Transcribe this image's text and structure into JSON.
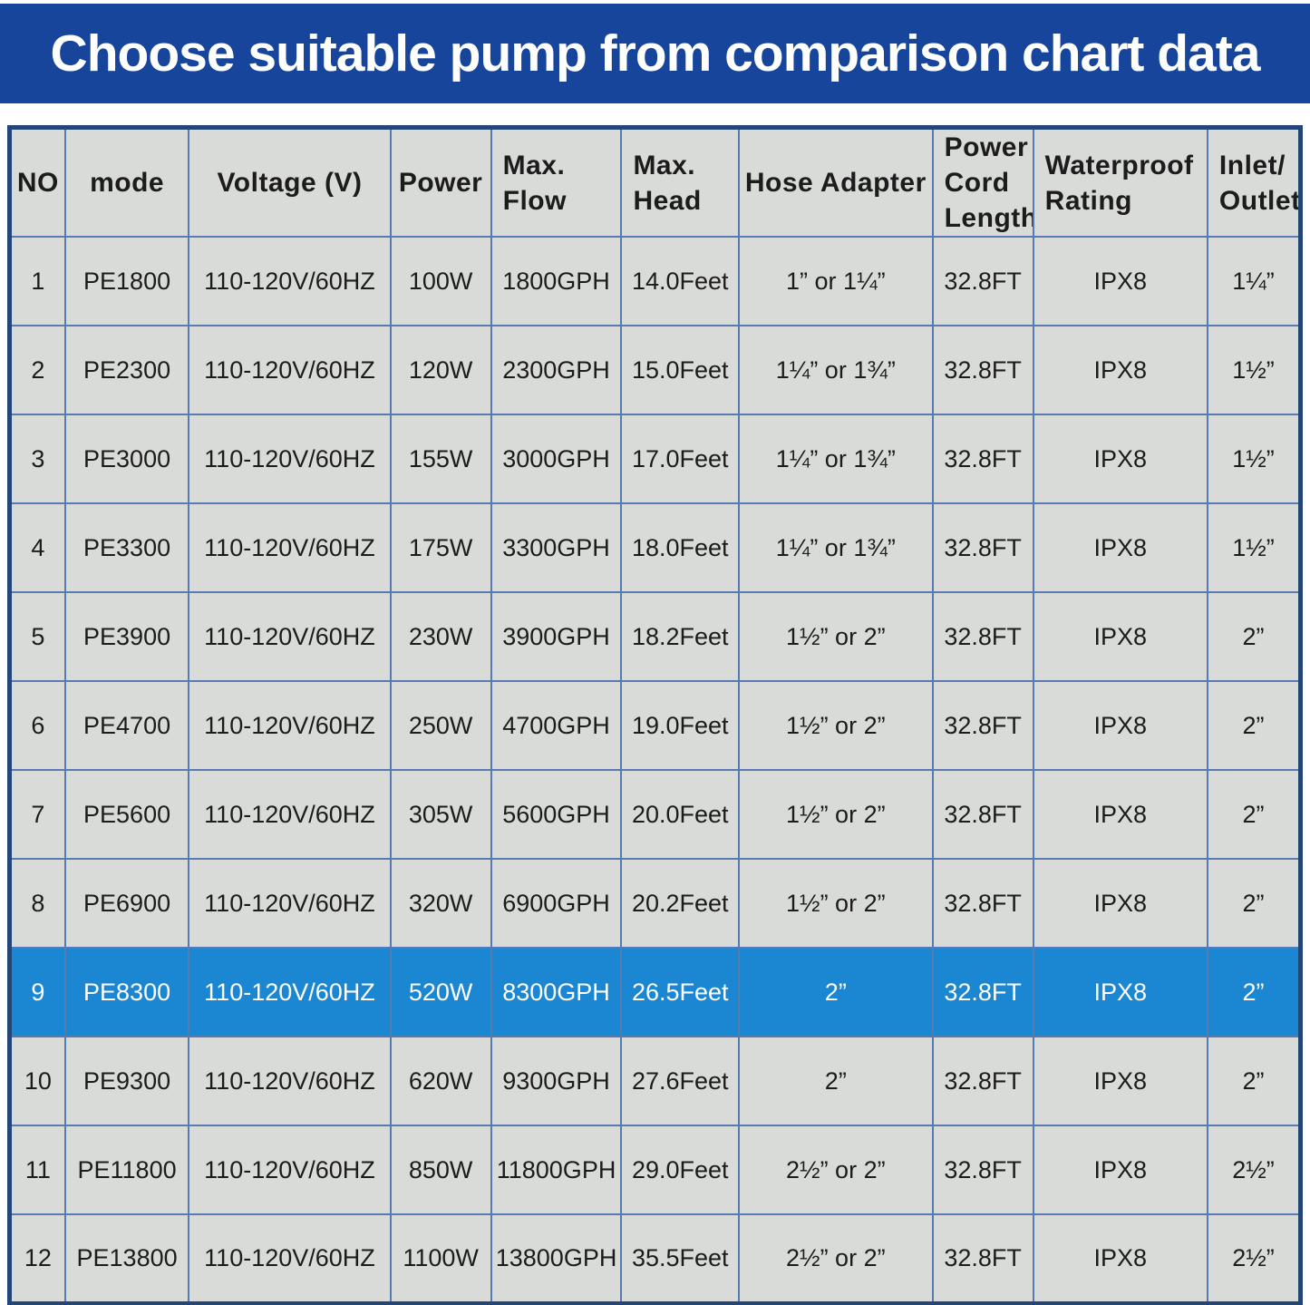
{
  "banner": {
    "title": "Choose suitable pump from comparison chart data"
  },
  "colors": {
    "banner_bg": "#18459c",
    "banner_text": "#ffffff",
    "cell_bg": "#d9dbd8",
    "grid_line": "#557bb0",
    "outer_border": "#224678",
    "highlight_bg": "#1b87d2",
    "highlight_text": "#ffffff",
    "text_color": "#1c1c1c"
  },
  "chart_data": {
    "type": "table",
    "title": "Choose suitable pump from comparison chart data",
    "columns": [
      {
        "key": "no",
        "label": "NO"
      },
      {
        "key": "mode",
        "label": "mode"
      },
      {
        "key": "voltage",
        "label": "Voltage (V)"
      },
      {
        "key": "power",
        "label": "Power"
      },
      {
        "key": "max_flow",
        "label": "Max.\nFlow"
      },
      {
        "key": "max_head",
        "label": "Max.\nHead"
      },
      {
        "key": "hose_adapter",
        "label": "Hose Adapter"
      },
      {
        "key": "cord_length",
        "label": "Power\nCord\nLength"
      },
      {
        "key": "waterproof",
        "label": "Waterproof\nRating"
      },
      {
        "key": "inlet_outlet",
        "label": "Inlet/\nOutlet"
      }
    ],
    "highlighted_row_no": "9",
    "rows": [
      {
        "no": "1",
        "mode": "PE1800",
        "voltage": "110-120V/60HZ",
        "power": "100W",
        "max_flow": "1800GPH",
        "max_head": "14.0Feet",
        "hose_adapter": "1” or 1¼”",
        "cord_length": "32.8FT",
        "waterproof": "IPX8",
        "inlet_outlet": "1¼”",
        "highlighted": false
      },
      {
        "no": "2",
        "mode": "PE2300",
        "voltage": "110-120V/60HZ",
        "power": "120W",
        "max_flow": "2300GPH",
        "max_head": "15.0Feet",
        "hose_adapter": "1¼” or 1¾”",
        "cord_length": "32.8FT",
        "waterproof": "IPX8",
        "inlet_outlet": "1½”",
        "highlighted": false
      },
      {
        "no": "3",
        "mode": "PE3000",
        "voltage": "110-120V/60HZ",
        "power": "155W",
        "max_flow": "3000GPH",
        "max_head": "17.0Feet",
        "hose_adapter": "1¼” or 1¾”",
        "cord_length": "32.8FT",
        "waterproof": "IPX8",
        "inlet_outlet": "1½”",
        "highlighted": false
      },
      {
        "no": "4",
        "mode": "PE3300",
        "voltage": "110-120V/60HZ",
        "power": "175W",
        "max_flow": "3300GPH",
        "max_head": "18.0Feet",
        "hose_adapter": "1¼” or 1¾”",
        "cord_length": "32.8FT",
        "waterproof": "IPX8",
        "inlet_outlet": "1½”",
        "highlighted": false
      },
      {
        "no": "5",
        "mode": "PE3900",
        "voltage": "110-120V/60HZ",
        "power": "230W",
        "max_flow": "3900GPH",
        "max_head": "18.2Feet",
        "hose_adapter": "1½” or 2”",
        "cord_length": "32.8FT",
        "waterproof": "IPX8",
        "inlet_outlet": "2”",
        "highlighted": false
      },
      {
        "no": "6",
        "mode": "PE4700",
        "voltage": "110-120V/60HZ",
        "power": "250W",
        "max_flow": "4700GPH",
        "max_head": "19.0Feet",
        "hose_adapter": "1½” or 2”",
        "cord_length": "32.8FT",
        "waterproof": "IPX8",
        "inlet_outlet": "2”",
        "highlighted": false
      },
      {
        "no": "7",
        "mode": "PE5600",
        "voltage": "110-120V/60HZ",
        "power": "305W",
        "max_flow": "5600GPH",
        "max_head": "20.0Feet",
        "hose_adapter": "1½” or 2”",
        "cord_length": "32.8FT",
        "waterproof": "IPX8",
        "inlet_outlet": "2”",
        "highlighted": false
      },
      {
        "no": "8",
        "mode": "PE6900",
        "voltage": "110-120V/60HZ",
        "power": "320W",
        "max_flow": "6900GPH",
        "max_head": "20.2Feet",
        "hose_adapter": "1½” or 2”",
        "cord_length": "32.8FT",
        "waterproof": "IPX8",
        "inlet_outlet": "2”",
        "highlighted": false
      },
      {
        "no": "9",
        "mode": "PE8300",
        "voltage": "110-120V/60HZ",
        "power": "520W",
        "max_flow": "8300GPH",
        "max_head": "26.5Feet",
        "hose_adapter": "2”",
        "cord_length": "32.8FT",
        "waterproof": "IPX8",
        "inlet_outlet": "2”",
        "highlighted": true
      },
      {
        "no": "10",
        "mode": "PE9300",
        "voltage": "110-120V/60HZ",
        "power": "620W",
        "max_flow": "9300GPH",
        "max_head": "27.6Feet",
        "hose_adapter": "2”",
        "cord_length": "32.8FT",
        "waterproof": "IPX8",
        "inlet_outlet": "2”",
        "highlighted": false
      },
      {
        "no": "11",
        "mode": "PE11800",
        "voltage": "110-120V/60HZ",
        "power": "850W",
        "max_flow": "11800GPH",
        "max_head": "29.0Feet",
        "hose_adapter": "2½” or 2”",
        "cord_length": "32.8FT",
        "waterproof": "IPX8",
        "inlet_outlet": "2½”",
        "highlighted": false
      },
      {
        "no": "12",
        "mode": "PE13800",
        "voltage": "110-120V/60HZ",
        "power": "1100W",
        "max_flow": "13800GPH",
        "max_head": "35.5Feet",
        "hose_adapter": "2½” or 2”",
        "cord_length": "32.8FT",
        "waterproof": "IPX8",
        "inlet_outlet": "2½”",
        "highlighted": false
      }
    ]
  }
}
